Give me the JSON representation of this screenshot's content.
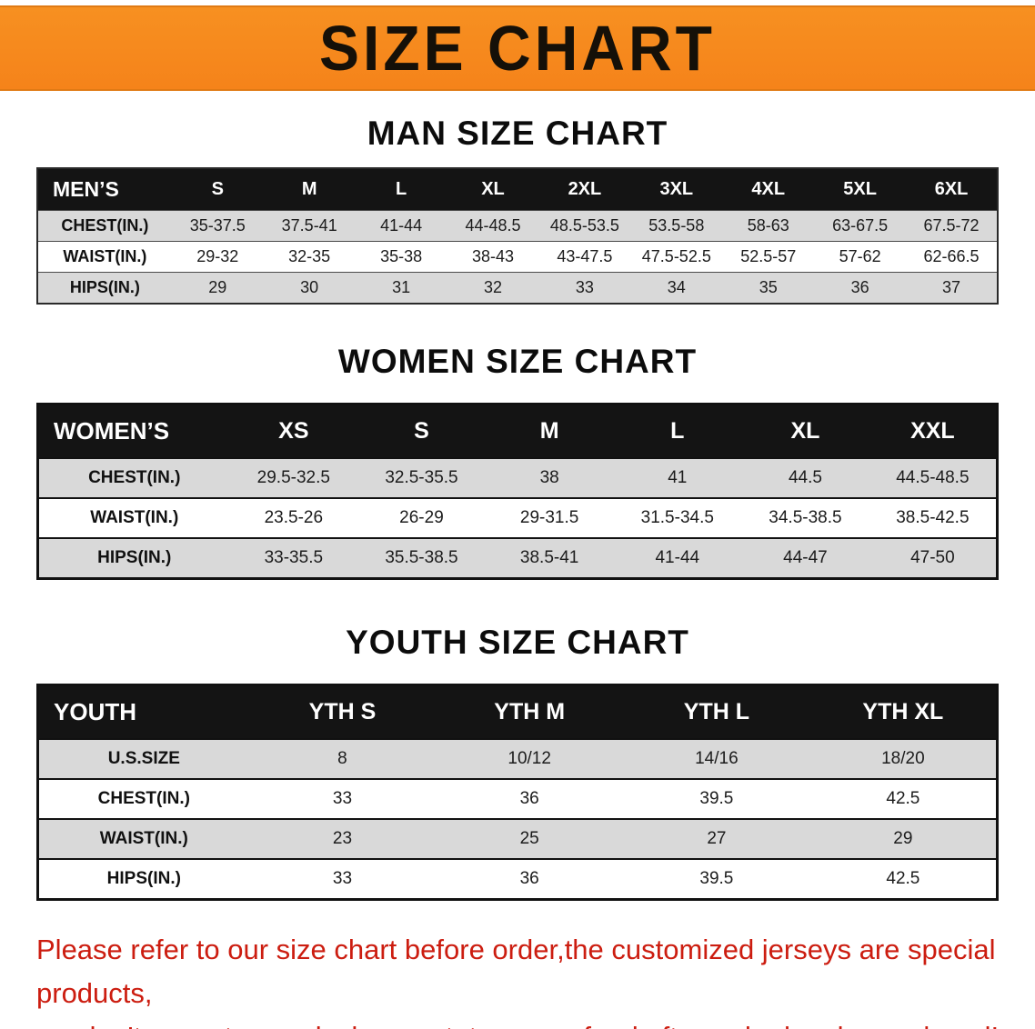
{
  "banner": {
    "title": "SIZE CHART",
    "bg_color": "#F5831A",
    "text_color": "#151008"
  },
  "sections": [
    {
      "heading": "MAN SIZE CHART",
      "table": {
        "header": [
          "MEN’S",
          "S",
          "M",
          "L",
          "XL",
          "2XL",
          "3XL",
          "4XL",
          "5XL",
          "6XL"
        ],
        "rows": [
          [
            "CHEST(IN.)",
            "35-37.5",
            "37.5-41",
            "41-44",
            "44-48.5",
            "48.5-53.5",
            "53.5-58",
            "58-63",
            "63-67.5",
            "67.5-72"
          ],
          [
            "WAIST(IN.)",
            "29-32",
            "32-35",
            "35-38",
            "38-43",
            "43-47.5",
            "47.5-52.5",
            "52.5-57",
            "57-62",
            "62-66.5"
          ],
          [
            "HIPS(IN.)",
            "29",
            "30",
            "31",
            "32",
            "33",
            "34",
            "35",
            "36",
            "37"
          ]
        ]
      }
    },
    {
      "heading": "WOMEN SIZE CHART",
      "table": {
        "header": [
          "WOMEN’S",
          "XS",
          "S",
          "M",
          "L",
          "XL",
          "XXL"
        ],
        "rows": [
          [
            "CHEST(IN.)",
            "29.5-32.5",
            "32.5-35.5",
            "38",
            "41",
            "44.5",
            "44.5-48.5"
          ],
          [
            "WAIST(IN.)",
            "23.5-26",
            "26-29",
            "29-31.5",
            "31.5-34.5",
            "34.5-38.5",
            "38.5-42.5"
          ],
          [
            "HIPS(IN.)",
            "33-35.5",
            "35.5-38.5",
            "38.5-41",
            "41-44",
            "44-47",
            "47-50"
          ]
        ]
      }
    },
    {
      "heading": "YOUTH SIZE CHART",
      "table": {
        "header": [
          "YOUTH",
          "YTH S",
          "YTH M",
          "YTH L",
          "YTH XL"
        ],
        "rows": [
          [
            "U.S.SIZE",
            "8",
            "10/12",
            "14/16",
            "18/20"
          ],
          [
            "CHEST(IN.)",
            "33",
            "36",
            "39.5",
            "42.5"
          ],
          [
            "WAIST(IN.)",
            "23",
            "25",
            "27",
            "29"
          ],
          [
            "HIPS(IN.)",
            "33",
            "36",
            "39.5",
            "42.5"
          ]
        ]
      }
    }
  ],
  "footer": {
    "line1": "Please refer to our size chart before order,the customized jerseys are special products,",
    "line2": "we don’t accept cancel, change, teturn or refund after order has been placed!",
    "text_color": "#CC1D10"
  }
}
